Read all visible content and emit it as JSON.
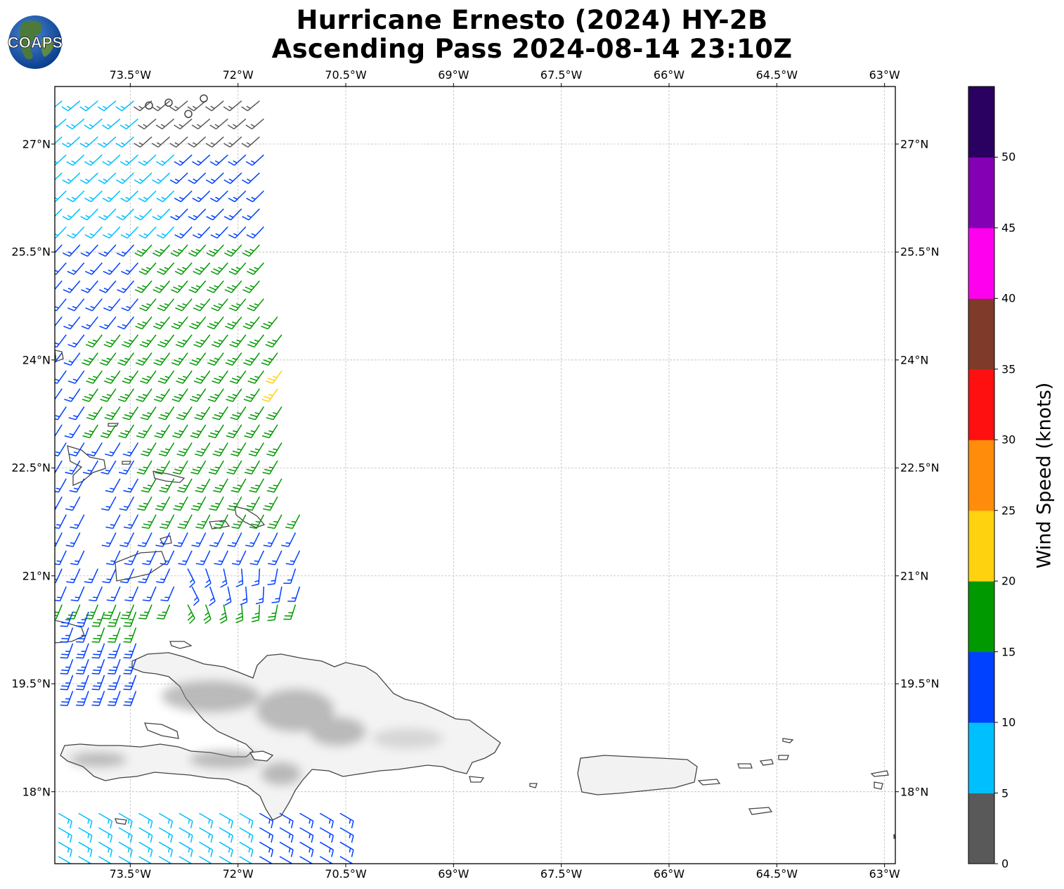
{
  "title_line1": "Hurricane Ernesto (2024) HY-2B",
  "title_line2": "Ascending Pass 2024-08-14 23:10Z",
  "logo_text": "COAPS",
  "lon_ticks": [
    "73.5°W",
    "72°W",
    "70.5°W",
    "69°W",
    "67.5°W",
    "66°W",
    "64.5°W",
    "63°W"
  ],
  "lat_ticks": [
    "27°N",
    "25.5°N",
    "24°N",
    "22.5°N",
    "21°N",
    "19.5°N",
    "18°N"
  ],
  "colorbar": {
    "label": "Wind Speed (knots)",
    "tick_labels": [
      "0",
      "5",
      "10",
      "15",
      "20",
      "25",
      "30",
      "35",
      "40",
      "45",
      "50"
    ],
    "colors": [
      "#595959",
      "#00bfff",
      "#0040ff",
      "#009900",
      "#ffd20f",
      "#ff8c0a",
      "#ff1010",
      "#803a2a",
      "#ff00ee",
      "#8400b5",
      "#2a0060"
    ]
  },
  "map": {
    "lon_range": [
      -74.55,
      -62.85
    ],
    "lat_range": [
      17.0,
      27.8
    ],
    "grid": true,
    "land_color": "#ffffff",
    "coast_color": "#444444"
  }
}
